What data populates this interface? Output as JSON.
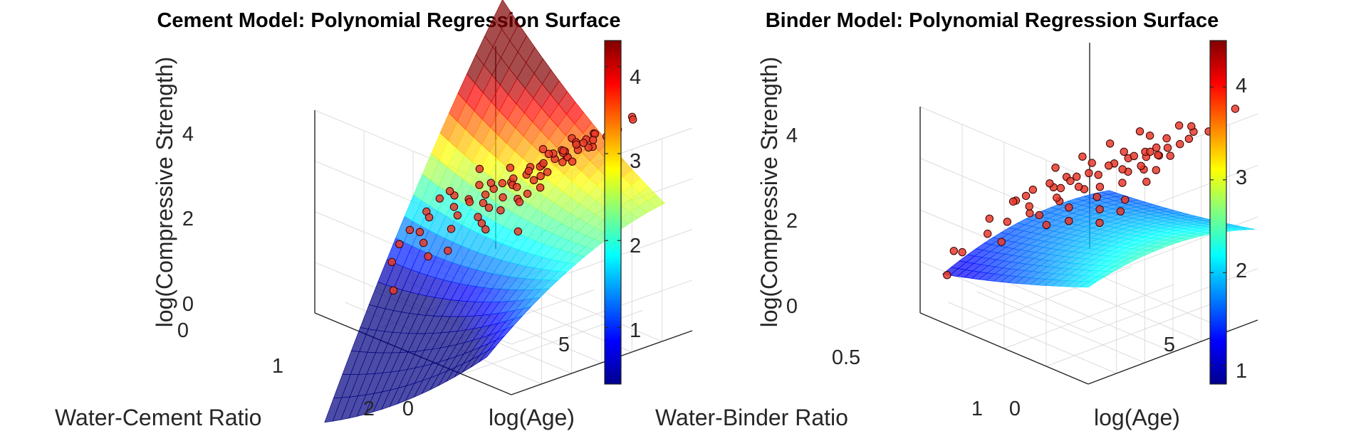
{
  "chart_data": [
    {
      "type": "surface3d",
      "title": "Cement Model: Polynomial Regression Surface",
      "xlabel": "Water-Cement Ratio",
      "ylabel": "log(Age)",
      "zlabel": "log(Compressive Strength)",
      "xlim": [
        0,
        2
      ],
      "ylim": [
        0,
        6
      ],
      "zlim": [
        0,
        4.4
      ],
      "xticks": [
        "0",
        "1",
        "2"
      ],
      "yticks": [
        "0",
        "5"
      ],
      "zticks": [
        "0",
        "2",
        "4"
      ],
      "colorbar": {
        "min": 0.35,
        "max": 4.3,
        "ticks": [
          "1",
          "2",
          "3",
          "4"
        ],
        "colormap": "jet"
      },
      "surface": {
        "x_range": [
          0.25,
          1.9
        ],
        "y_range": [
          0,
          5.9
        ],
        "coef": [
          1.2,
          -2.5,
          0.35,
          0.42,
          0.6,
          -0.04
        ],
        "alpha": 0.7
      },
      "scatter": {
        "color": "#e8392b",
        "points": [
          [
            0.45,
            3.3,
            4.0
          ],
          [
            0.5,
            3.3,
            4.1
          ],
          [
            0.4,
            4.0,
            4.1
          ],
          [
            0.45,
            4.2,
            4.3
          ],
          [
            0.5,
            3.5,
            3.9
          ],
          [
            0.55,
            4.0,
            3.9
          ],
          [
            0.4,
            3.0,
            4.0
          ],
          [
            0.5,
            4.4,
            4.2
          ],
          [
            0.55,
            3.8,
            4.2
          ],
          [
            0.35,
            3.7,
            4.2
          ],
          [
            0.6,
            3.4,
            3.8
          ],
          [
            0.6,
            4.1,
            4.0
          ],
          [
            0.45,
            5.0,
            4.2
          ],
          [
            0.55,
            4.5,
            4.0
          ],
          [
            0.65,
            3.9,
            3.8
          ],
          [
            0.5,
            2.6,
            3.7
          ],
          [
            0.45,
            2.0,
            3.5
          ],
          [
            0.55,
            2.0,
            3.3
          ],
          [
            0.6,
            2.7,
            3.5
          ],
          [
            0.7,
            3.3,
            3.6
          ],
          [
            0.7,
            4.0,
            3.7
          ],
          [
            0.75,
            3.4,
            3.5
          ],
          [
            0.8,
            4.0,
            3.6
          ],
          [
            0.65,
            4.6,
            3.9
          ],
          [
            0.4,
            4.7,
            4.3
          ],
          [
            0.35,
            4.3,
            4.3
          ],
          [
            0.6,
            5.3,
            4.1
          ],
          [
            0.75,
            4.6,
            3.7
          ],
          [
            0.5,
            1.9,
            3.3
          ],
          [
            0.6,
            1.6,
            3.1
          ],
          [
            0.7,
            2.0,
            3.2
          ],
          [
            0.8,
            2.6,
            3.3
          ],
          [
            0.85,
            3.4,
            3.4
          ],
          [
            0.9,
            4.0,
            3.3
          ],
          [
            0.9,
            3.0,
            3.2
          ],
          [
            0.95,
            3.6,
            3.1
          ],
          [
            0.8,
            5.0,
            3.6
          ],
          [
            0.7,
            1.3,
            2.8
          ],
          [
            0.6,
            1.1,
            2.8
          ],
          [
            0.8,
            1.5,
            2.8
          ],
          [
            0.9,
            2.0,
            2.9
          ],
          [
            1.0,
            2.4,
            2.9
          ],
          [
            1.0,
            3.3,
            2.9
          ],
          [
            1.05,
            4.0,
            3.0
          ],
          [
            1.1,
            3.0,
            2.8
          ],
          [
            0.95,
            1.1,
            2.5
          ],
          [
            1.1,
            1.8,
            2.5
          ],
          [
            1.2,
            2.5,
            2.6
          ],
          [
            1.25,
            3.4,
            2.7
          ],
          [
            1.3,
            4.2,
            2.8
          ],
          [
            1.4,
            3.5,
            2.5
          ],
          [
            1.35,
            2.5,
            2.3
          ],
          [
            1.5,
            3.0,
            2.3
          ],
          [
            1.6,
            2.4,
            2.0
          ],
          [
            1.7,
            3.5,
            2.1
          ],
          [
            1.55,
            4.0,
            2.6
          ],
          [
            0.8,
            0.5,
            2.3
          ],
          [
            1.0,
            0.5,
            2.0
          ],
          [
            1.2,
            1.0,
            2.0
          ],
          [
            1.6,
            1.5,
            1.5
          ],
          [
            1.8,
            2.5,
            1.4
          ],
          [
            1.4,
            0.6,
            1.5
          ],
          [
            1.2,
            0.0,
            1.2
          ],
          [
            0.3,
            1.2,
            3.0
          ],
          [
            0.35,
            2.1,
            3.7
          ],
          [
            0.55,
            5.8,
            4.2
          ],
          [
            0.45,
            5.5,
            4.3
          ],
          [
            0.7,
            5.6,
            3.9
          ],
          [
            0.85,
            4.5,
            3.5
          ],
          [
            1.0,
            4.5,
            3.3
          ],
          [
            1.15,
            4.8,
            3.2
          ],
          [
            0.4,
            2.5,
            3.9
          ],
          [
            0.3,
            3.0,
            4.1
          ],
          [
            0.65,
            2.3,
            3.4
          ],
          [
            0.75,
            1.7,
            3.0
          ],
          [
            0.95,
            2.8,
            3.1
          ],
          [
            1.1,
            2.2,
            2.7
          ],
          [
            1.3,
            1.2,
            2.1
          ],
          [
            1.45,
            2.0,
            2.1
          ],
          [
            1.65,
            3.0,
            2.1
          ]
        ]
      }
    },
    {
      "type": "surface3d",
      "title": "Binder Model: Polynomial Regression Surface",
      "xlabel": "Water-Binder Ratio",
      "ylabel": "log(Age)",
      "zlabel": "log(Compressive Strength)",
      "xlim": [
        0.25,
        1.0
      ],
      "ylim": [
        0,
        6
      ],
      "zlim": [
        0,
        4.6
      ],
      "xticks": [
        "0.5",
        "1"
      ],
      "yticks": [
        "0",
        "5"
      ],
      "zticks": [
        "0",
        "2",
        "4"
      ],
      "colorbar": {
        "min": 0.8,
        "max": 4.5,
        "ticks": [
          "1",
          "2",
          "3",
          "4"
        ],
        "colormap": "jet"
      },
      "surface": {
        "x_range": [
          0.25,
          0.9
        ],
        "y_range": [
          0,
          5.9
        ],
        "coef": [
          2.7,
          -2.3,
          0.55,
          0.15,
          0.15,
          -0.035
        ],
        "alpha": 0.7
      },
      "scatter": {
        "color": "#e8392b",
        "points": [
          [
            0.3,
            3.3,
            4.2
          ],
          [
            0.32,
            3.8,
            4.3
          ],
          [
            0.35,
            3.3,
            4.1
          ],
          [
            0.33,
            4.2,
            4.3
          ],
          [
            0.38,
            3.5,
            4.0
          ],
          [
            0.4,
            4.0,
            4.0
          ],
          [
            0.3,
            2.8,
            4.0
          ],
          [
            0.28,
            4.5,
            4.5
          ],
          [
            0.36,
            4.6,
            4.3
          ],
          [
            0.42,
            3.4,
            3.9
          ],
          [
            0.45,
            4.0,
            3.9
          ],
          [
            0.4,
            2.6,
            3.8
          ],
          [
            0.45,
            2.8,
            3.7
          ],
          [
            0.5,
            3.4,
            3.7
          ],
          [
            0.5,
            4.0,
            3.7
          ],
          [
            0.48,
            4.6,
            3.9
          ],
          [
            0.55,
            3.3,
            3.5
          ],
          [
            0.55,
            4.0,
            3.5
          ],
          [
            0.52,
            2.0,
            3.3
          ],
          [
            0.45,
            2.0,
            3.5
          ],
          [
            0.6,
            2.8,
            3.3
          ],
          [
            0.6,
            3.5,
            3.3
          ],
          [
            0.62,
            4.2,
            3.4
          ],
          [
            0.35,
            2.0,
            3.8
          ],
          [
            0.3,
            1.7,
            3.6
          ],
          [
            0.35,
            1.2,
            3.4
          ],
          [
            0.4,
            1.5,
            3.5
          ],
          [
            0.5,
            1.3,
            3.1
          ],
          [
            0.58,
            1.6,
            3.0
          ],
          [
            0.65,
            2.2,
            3.0
          ],
          [
            0.68,
            3.0,
            3.0
          ],
          [
            0.7,
            3.7,
            3.1
          ],
          [
            0.72,
            2.5,
            2.8
          ],
          [
            0.75,
            3.2,
            2.8
          ],
          [
            0.78,
            2.0,
            2.6
          ],
          [
            0.8,
            3.0,
            2.6
          ],
          [
            0.62,
            1.2,
            2.7
          ],
          [
            0.7,
            1.5,
            2.5
          ],
          [
            0.55,
            0.9,
            2.7
          ],
          [
            0.45,
            0.9,
            3.0
          ],
          [
            0.75,
            1.1,
            2.3
          ],
          [
            0.85,
            2.2,
            2.3
          ],
          [
            0.85,
            2.8,
            2.4
          ],
          [
            0.8,
            0.8,
            2.0
          ],
          [
            0.88,
            1.5,
            2.0
          ],
          [
            0.9,
            2.5,
            2.1
          ],
          [
            0.7,
            0.5,
            2.1
          ],
          [
            0.85,
            0.3,
            1.6
          ],
          [
            0.9,
            0.4,
            1.5
          ],
          [
            0.88,
            0.0,
            1.1
          ],
          [
            0.3,
            0.8,
            3.3
          ],
          [
            0.28,
            2.3,
            3.9
          ],
          [
            0.35,
            5.3,
            4.6
          ],
          [
            0.42,
            5.0,
            4.2
          ],
          [
            0.5,
            5.2,
            4.0
          ],
          [
            0.58,
            4.8,
            3.7
          ],
          [
            0.65,
            5.0,
            3.6
          ],
          [
            0.72,
            4.5,
            3.3
          ],
          [
            0.78,
            4.0,
            3.0
          ],
          [
            0.85,
            3.6,
            2.7
          ],
          [
            0.3,
            5.6,
            4.7
          ],
          [
            0.27,
            1.3,
            3.5
          ],
          [
            0.33,
            2.6,
            4.0
          ],
          [
            0.38,
            2.9,
            3.9
          ],
          [
            0.44,
            3.7,
            3.9
          ],
          [
            0.52,
            2.5,
            3.5
          ],
          [
            0.57,
            2.2,
            3.2
          ],
          [
            0.63,
            1.9,
            2.9
          ],
          [
            0.67,
            2.7,
            3.0
          ],
          [
            0.74,
            1.8,
            2.5
          ]
        ]
      }
    }
  ]
}
